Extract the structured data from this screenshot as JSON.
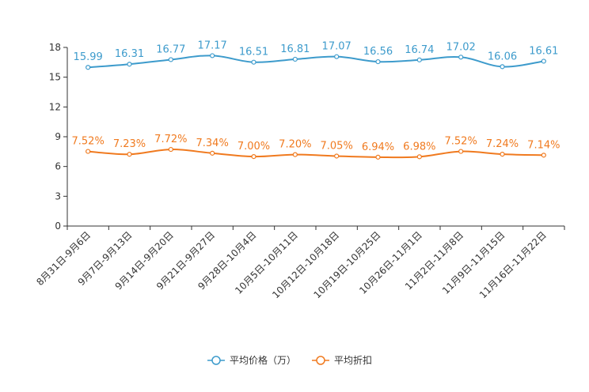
{
  "chart_data": {
    "type": "line",
    "title": "",
    "xlabel": "",
    "ylabel": "",
    "ylim": [
      0,
      18
    ],
    "yticks": [
      0,
      3,
      6,
      9,
      12,
      15,
      18
    ],
    "categories": [
      "8月31日-9月6日",
      "9月7日-9月13日",
      "9月14日-9月20日",
      "9月21日-9月27日",
      "9月28日-10月4日",
      "10月5日-10月11日",
      "10月12日-10月18日",
      "10月19日-10月25日",
      "10月26日-11月1日",
      "11月2日-11月8日",
      "11月9日-11月15日",
      "11月16日-11月22日"
    ],
    "series": [
      {
        "name": "平均价格（万）",
        "color": "#3d9bcc",
        "values": [
          15.99,
          16.31,
          16.77,
          17.17,
          16.51,
          16.81,
          17.07,
          16.56,
          16.74,
          17.02,
          16.06,
          16.61
        ],
        "labels": [
          "15.99",
          "16.31",
          "16.77",
          "17.17",
          "16.51",
          "16.81",
          "17.07",
          "16.56",
          "16.74",
          "17.02",
          "16.06",
          "16.61"
        ]
      },
      {
        "name": "平均折扣",
        "color": "#f07a1f",
        "values": [
          7.52,
          7.23,
          7.72,
          7.34,
          7.0,
          7.2,
          7.05,
          6.94,
          6.98,
          7.52,
          7.24,
          7.14
        ],
        "labels": [
          "7.52%",
          "7.23%",
          "7.72%",
          "7.34%",
          "7.00%",
          "7.20%",
          "7.05%",
          "6.94%",
          "6.98%",
          "7.52%",
          "7.24%",
          "7.14%"
        ]
      }
    ],
    "legend_position": "bottom-center",
    "grid": false
  }
}
